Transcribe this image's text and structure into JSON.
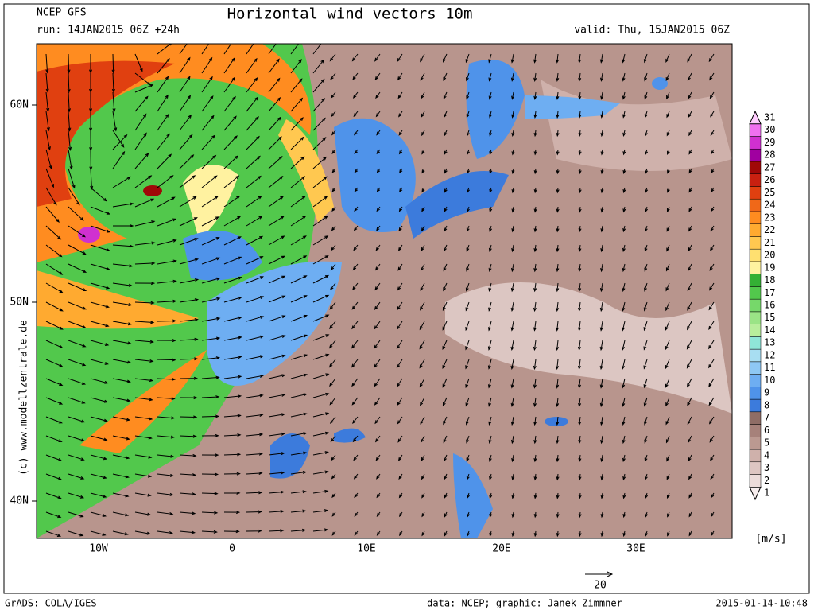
{
  "header": {
    "model": "NCEP GFS",
    "run": "run: 14JAN2015 06Z +24h",
    "title": "Horizontal wind vectors 10m",
    "valid": "valid: Thu, 15JAN2015 06Z"
  },
  "map": {
    "lat_labels": [
      "60N",
      "50N",
      "40N"
    ],
    "lon_labels": [
      "10W",
      "0",
      "10E",
      "20E",
      "30E"
    ],
    "copyright": "(c) www.modellzentrale.de"
  },
  "colorbar": {
    "levels": [
      1,
      2,
      3,
      4,
      5,
      6,
      7,
      8,
      9,
      10,
      11,
      12,
      13,
      14,
      15,
      16,
      17,
      18,
      19,
      20,
      21,
      22,
      23,
      24,
      25,
      26,
      27,
      28,
      29,
      30,
      31
    ],
    "colors": [
      "#f7eeee",
      "#ecdcda",
      "#dec6c2",
      "#cfb1ab",
      "#bb9991",
      "#a6817a",
      "#8f6d66",
      "#3c7bdc",
      "#4f93ea",
      "#6eaef2",
      "#8ec8f4",
      "#a8def2",
      "#8fe6d8",
      "#b8ee9c",
      "#9ae486",
      "#76d86a",
      "#52c84c",
      "#34b034",
      "#fff2a0",
      "#ffe070",
      "#ffc850",
      "#ffaa30",
      "#ff8c20",
      "#f06818",
      "#e04010",
      "#c82010",
      "#a00808",
      "#a000a0",
      "#d030d0",
      "#f070f0",
      "#ffccff"
    ],
    "unit": "[m/s]"
  },
  "reference_vector": {
    "label": "20"
  },
  "footer": {
    "left": "GrADS: COLA/IGES",
    "center": "data: NCEP; graphic: Janek Zimmner",
    "right": "2015-01-14-10:48"
  }
}
